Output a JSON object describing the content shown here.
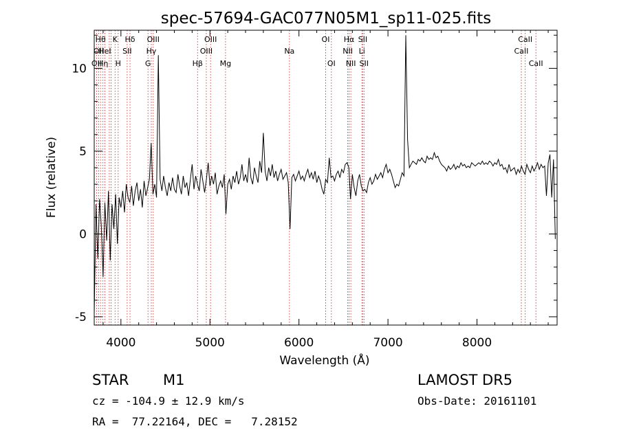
{
  "chart_data": {
    "type": "line",
    "title": "spec-57694-GAC077N05M1_sp11-025.fits",
    "xlabel": "Wavelength (Å)",
    "ylabel": "Flux (relative)",
    "xlim": [
      3700,
      8900
    ],
    "ylim": [
      -5.5,
      12.3
    ],
    "xticks": [
      4000,
      5000,
      6000,
      7000,
      8000
    ],
    "yticks": [
      -5,
      0,
      5,
      10
    ],
    "grid": false,
    "series": [
      {
        "color": "#000000",
        "x": [
          3700,
          3720,
          3740,
          3760,
          3780,
          3800,
          3820,
          3840,
          3860,
          3880,
          3900,
          3920,
          3940,
          3960,
          3980,
          4000,
          4020,
          4040,
          4060,
          4080,
          4100,
          4120,
          4140,
          4160,
          4180,
          4200,
          4220,
          4240,
          4260,
          4280,
          4300,
          4320,
          4340,
          4360,
          4380,
          4400,
          4420,
          4440,
          4460,
          4480,
          4500,
          4520,
          4540,
          4560,
          4580,
          4600,
          4620,
          4640,
          4660,
          4680,
          4700,
          4720,
          4740,
          4760,
          4780,
          4800,
          4820,
          4840,
          4860,
          4880,
          4900,
          4920,
          4940,
          4960,
          4980,
          5000,
          5020,
          5040,
          5060,
          5080,
          5100,
          5120,
          5140,
          5160,
          5180,
          5200,
          5220,
          5240,
          5260,
          5280,
          5300,
          5320,
          5340,
          5360,
          5380,
          5400,
          5420,
          5440,
          5460,
          5480,
          5500,
          5520,
          5540,
          5560,
          5580,
          5600,
          5620,
          5640,
          5660,
          5680,
          5700,
          5720,
          5740,
          5760,
          5780,
          5800,
          5820,
          5840,
          5860,
          5880,
          5900,
          5920,
          5940,
          5960,
          5980,
          6000,
          6020,
          6040,
          6060,
          6080,
          6100,
          6120,
          6140,
          6160,
          6180,
          6200,
          6220,
          6240,
          6260,
          6280,
          6300,
          6320,
          6340,
          6360,
          6380,
          6400,
          6420,
          6440,
          6460,
          6480,
          6500,
          6520,
          6540,
          6560,
          6580,
          6600,
          6620,
          6640,
          6660,
          6680,
          6700,
          6720,
          6740,
          6760,
          6780,
          6800,
          6820,
          6840,
          6860,
          6880,
          6900,
          6920,
          6940,
          6960,
          6980,
          7000,
          7020,
          7040,
          7060,
          7080,
          7100,
          7120,
          7140,
          7160,
          7180,
          7200,
          7220,
          7240,
          7260,
          7280,
          7300,
          7320,
          7340,
          7360,
          7380,
          7400,
          7420,
          7440,
          7460,
          7480,
          7500,
          7520,
          7540,
          7560,
          7580,
          7600,
          7620,
          7640,
          7660,
          7680,
          7700,
          7720,
          7740,
          7760,
          7780,
          7800,
          7820,
          7840,
          7860,
          7880,
          7900,
          7920,
          7940,
          7960,
          7980,
          8000,
          8020,
          8040,
          8060,
          8080,
          8100,
          8120,
          8140,
          8160,
          8180,
          8200,
          8220,
          8240,
          8260,
          8280,
          8300,
          8320,
          8340,
          8360,
          8380,
          8400,
          8420,
          8440,
          8460,
          8480,
          8500,
          8520,
          8540,
          8560,
          8580,
          8600,
          8620,
          8640,
          8660,
          8680,
          8700,
          8720,
          8740,
          8760,
          8780,
          8800,
          8820,
          8840,
          8860,
          8880
        ],
        "y": [
          -4.8,
          1.8,
          -1.5,
          2.1,
          0.4,
          -2.6,
          1.9,
          -0.4,
          2.6,
          -1.6,
          1.8,
          0.3,
          2.4,
          -0.6,
          2.2,
          1.6,
          2.6,
          1.3,
          3.0,
          2.2,
          1.9,
          2.9,
          1.7,
          2.6,
          3.1,
          2.0,
          2.7,
          1.6,
          3.2,
          2.3,
          2.8,
          3.3,
          5.5,
          2.4,
          3.0,
          2.2,
          10.8,
          3.3,
          2.6,
          3.5,
          2.8,
          2.3,
          3.1,
          2.6,
          3.4,
          2.7,
          2.5,
          3.6,
          2.9,
          2.4,
          3.5,
          2.8,
          3.1,
          2.3,
          3.3,
          4.2,
          2.7,
          3.5,
          3.0,
          2.6,
          3.9,
          3.2,
          2.5,
          3.3,
          4.3,
          2.9,
          3.5,
          3.0,
          3.7,
          2.4,
          2.9,
          3.2,
          2.8,
          3.6,
          1.2,
          3.0,
          3.3,
          2.7,
          3.5,
          3.1,
          3.8,
          3.0,
          3.4,
          4.2,
          3.2,
          3.6,
          3.1,
          4.6,
          3.4,
          3.0,
          4.0,
          3.5,
          3.1,
          4.4,
          3.7,
          6.1,
          3.8,
          3.2,
          4.0,
          3.5,
          4.2,
          3.4,
          3.8,
          3.2,
          3.6,
          3.9,
          3.3,
          3.5,
          3.7,
          3.1,
          0.3,
          3.4,
          3.6,
          3.2,
          3.5,
          3.8,
          3.3,
          3.5,
          3.2,
          3.6,
          3.9,
          3.4,
          3.7,
          3.3,
          3.8,
          3.1,
          3.5,
          3.2,
          2.7,
          2.4,
          3.3,
          3.1,
          4.6,
          3.4,
          3.5,
          3.2,
          3.6,
          3.8,
          3.4,
          3.9,
          3.7,
          4.2,
          4.3,
          4.0,
          2.1,
          3.6,
          2.8,
          2.3,
          3.2,
          3.6,
          2.9,
          2.6,
          2.7,
          2.5,
          3.1,
          3.4,
          3.0,
          3.2,
          3.6,
          3.3,
          3.5,
          3.7,
          3.4,
          3.9,
          4.2,
          3.7,
          3.9,
          3.6,
          3.2,
          2.8,
          3.0,
          2.9,
          3.3,
          3.7,
          3.5,
          12.0,
          5.7,
          4.0,
          4.2,
          4.4,
          4.3,
          4.2,
          4.5,
          4.4,
          4.6,
          4.4,
          4.3,
          4.7,
          4.5,
          4.6,
          4.5,
          4.9,
          4.6,
          4.7,
          4.4,
          4.2,
          4.1,
          4.0,
          3.8,
          4.1,
          3.9,
          4.0,
          4.2,
          3.9,
          4.1,
          4.0,
          4.3,
          4.1,
          4.2,
          4.0,
          4.1,
          4.0,
          4.3,
          4.2,
          4.1,
          4.2,
          4.3,
          4.2,
          4.4,
          4.2,
          4.3,
          4.2,
          4.4,
          4.3,
          4.1,
          4.3,
          4.2,
          4.5,
          4.1,
          4.2,
          3.9,
          4.0,
          3.7,
          4.2,
          3.8,
          3.9,
          4.0,
          3.6,
          3.9,
          3.7,
          4.1,
          3.8,
          3.6,
          4.2,
          3.9,
          3.7,
          4.1,
          3.8,
          4.0,
          4.3,
          3.9,
          4.2,
          4.0,
          4.1,
          2.3,
          4.3,
          4.8,
          2.2,
          4.5,
          -0.3
        ]
      }
    ],
    "lines": [
      {
        "x": 3727,
        "label": "OII",
        "row": 2
      },
      {
        "x": 3750,
        "label": "OII",
        "row": 1
      },
      {
        "x": 3771,
        "label": "Hθ",
        "row": 0
      },
      {
        "x": 3798,
        "label": "Hη",
        "row": 2
      },
      {
        "x": 3820,
        "label": "HeI",
        "row": 1
      },
      {
        "x": 3869,
        "label": "",
        "row": 0
      },
      {
        "x": 3889,
        "label": "",
        "row": 0
      },
      {
        "x": 3934,
        "label": "K",
        "row": 0
      },
      {
        "x": 3969,
        "label": "H",
        "row": 2
      },
      {
        "x": 4070,
        "label": "SII",
        "row": 1
      },
      {
        "x": 4102,
        "label": "Hδ",
        "row": 0
      },
      {
        "x": 4304,
        "label": "G",
        "row": 2
      },
      {
        "x": 4341,
        "label": "Hγ",
        "row": 1
      },
      {
        "x": 4363,
        "label": "OIII",
        "row": 0
      },
      {
        "x": 4861,
        "label": "Hβ",
        "row": 2
      },
      {
        "x": 4959,
        "label": "OIII",
        "row": 1
      },
      {
        "x": 5007,
        "label": "OIII",
        "row": 0
      },
      {
        "x": 5175,
        "label": "Mg",
        "row": 2
      },
      {
        "x": 5893,
        "label": "Na",
        "row": 1
      },
      {
        "x": 6300,
        "label": "OI",
        "row": 0
      },
      {
        "x": 6364,
        "label": "OI",
        "row": 2
      },
      {
        "x": 6548,
        "label": "NII",
        "row": 1
      },
      {
        "x": 6563,
        "label": "Hα",
        "row": 0
      },
      {
        "x": 6583,
        "label": "NII",
        "row": 2
      },
      {
        "x": 6707,
        "label": "Li",
        "row": 1
      },
      {
        "x": 6716,
        "label": "SII",
        "row": 0
      },
      {
        "x": 6731,
        "label": "SII",
        "row": 2
      },
      {
        "x": 8498,
        "label": "CaII",
        "row": 1
      },
      {
        "x": 8542,
        "label": "CaII",
        "row": 0
      },
      {
        "x": 8662,
        "label": "CaII",
        "row": 2
      }
    ]
  },
  "info": {
    "object_class": "STAR",
    "subclass": "M1",
    "cz": "cz = -104.9 ± 12.9 km/s",
    "coords": "RA =  77.22164, DEC =   7.28152",
    "survey": "LAMOST DR5",
    "obs_date": "Obs-Date: 20161101"
  }
}
